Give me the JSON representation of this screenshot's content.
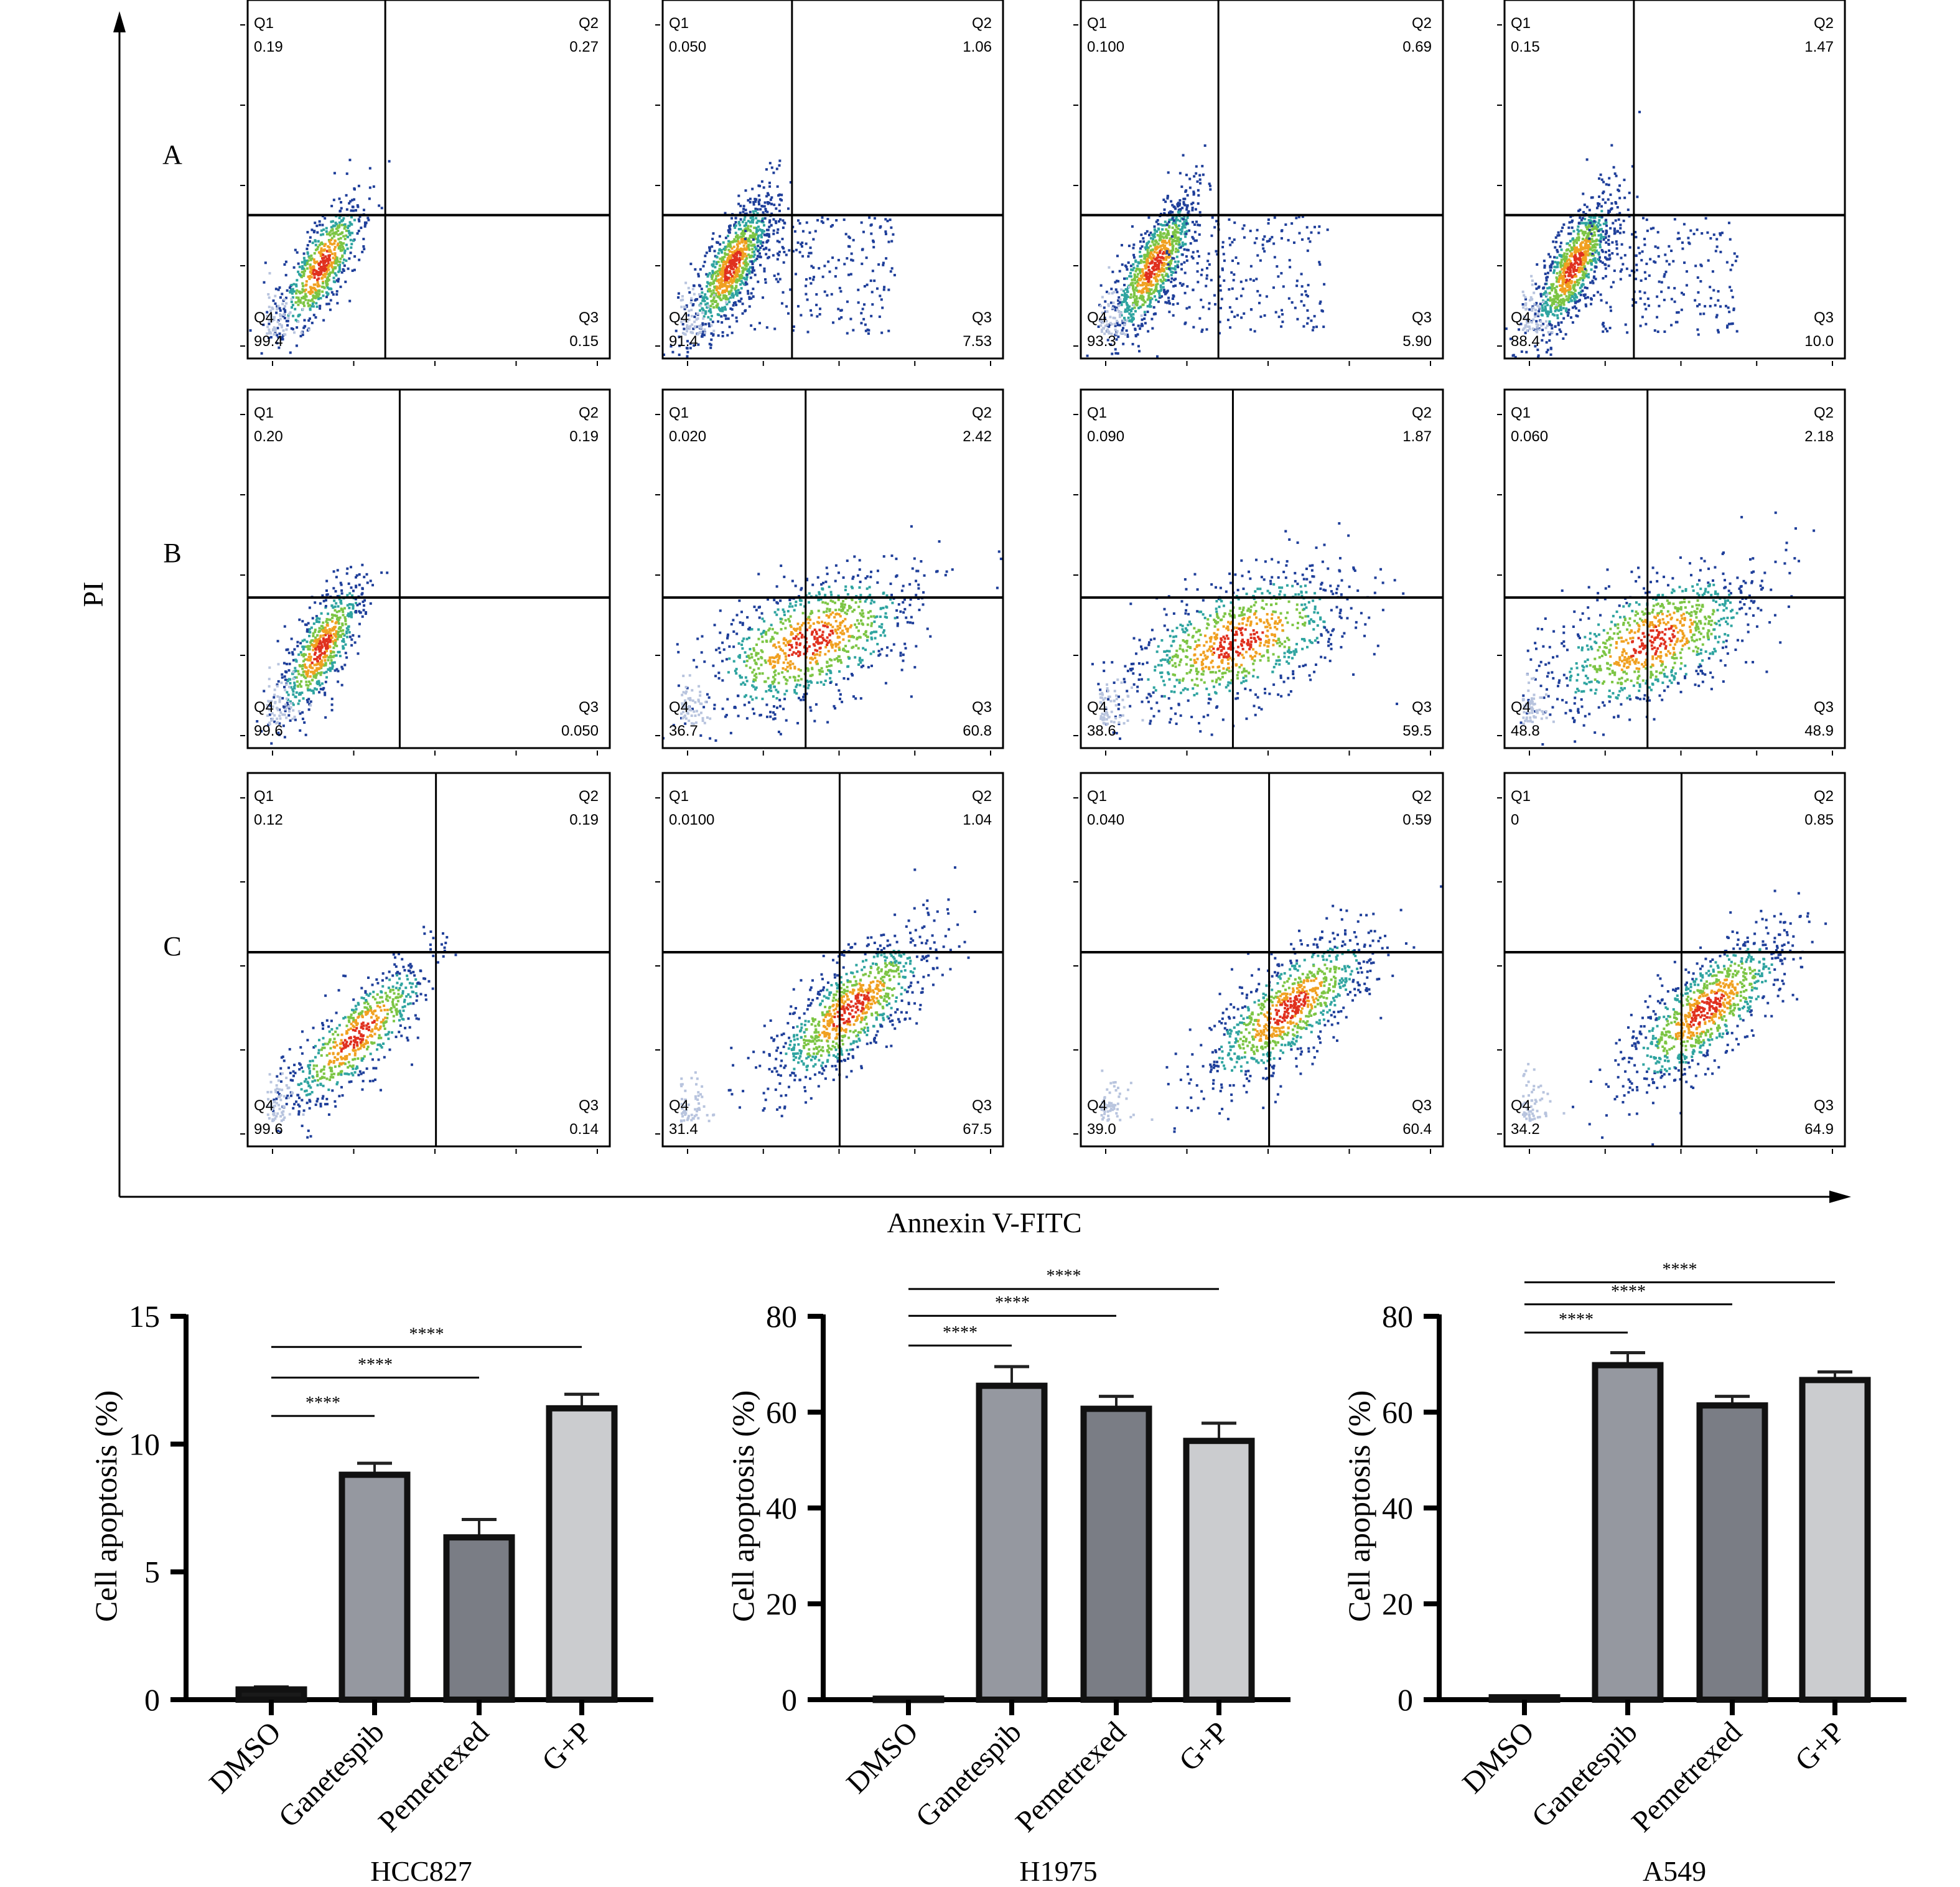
{
  "flow": {
    "y_axis_title": "PI",
    "x_axis_title": "Annexin V-FITC",
    "quadrant_names": [
      "Q1",
      "Q2",
      "Q3",
      "Q4"
    ],
    "rows": [
      {
        "label": "A",
        "plots": [
          {
            "Q1": "0.19",
            "Q2": "0.27",
            "Q3": "0.15",
            "Q4": "99.4"
          },
          {
            "Q1": "0.050",
            "Q2": "1.06",
            "Q3": "7.53",
            "Q4": "91.4"
          },
          {
            "Q1": "0.100",
            "Q2": "0.69",
            "Q3": "5.90",
            "Q4": "93.3"
          },
          {
            "Q1": "0.15",
            "Q2": "1.47",
            "Q3": "10.0",
            "Q4": "88.4"
          }
        ]
      },
      {
        "label": "B",
        "plots": [
          {
            "Q1": "0.20",
            "Q2": "0.19",
            "Q3": "0.050",
            "Q4": "99.6"
          },
          {
            "Q1": "0.020",
            "Q2": "2.42",
            "Q3": "60.8",
            "Q4": "36.7"
          },
          {
            "Q1": "0.090",
            "Q2": "1.87",
            "Q3": "59.5",
            "Q4": "38.6"
          },
          {
            "Q1": "0.060",
            "Q2": "2.18",
            "Q3": "48.9",
            "Q4": "48.8"
          }
        ]
      },
      {
        "label": "C",
        "plots": [
          {
            "Q1": "0.12",
            "Q2": "0.19",
            "Q3": "0.14",
            "Q4": "99.6"
          },
          {
            "Q1": "0.0100",
            "Q2": "1.04",
            "Q3": "67.5",
            "Q4": "31.4"
          },
          {
            "Q1": "0.040",
            "Q2": "0.59",
            "Q3": "60.4",
            "Q4": "39.0"
          },
          {
            "Q1": "0",
            "Q2": "0.85",
            "Q3": "64.9",
            "Q4": "34.2"
          }
        ]
      }
    ]
  },
  "chart_data": [
    {
      "type": "bar",
      "title": "HCC827",
      "ylabel": "Cell apoptosis (%)",
      "categories": [
        "DMSO",
        "Ganetespib",
        "Pemetrexed",
        "G+P"
      ],
      "values": [
        0.4,
        8.8,
        6.35,
        11.4
      ],
      "error": [
        0.1,
        0.45,
        0.7,
        0.55
      ],
      "ylim": [
        0,
        15
      ],
      "yticks": [
        "0",
        "5",
        "10",
        "15"
      ],
      "significance": [
        {
          "from": "DMSO",
          "to": "Ganetespib",
          "label": "****",
          "y": 11.1
        },
        {
          "from": "DMSO",
          "to": "Pemetrexed",
          "label": "****",
          "y": 12.6
        },
        {
          "from": "DMSO",
          "to": "G+P",
          "label": "****",
          "y": 13.8
        }
      ],
      "colors": [
        "#1a1a1a",
        "#9598a0",
        "#7a7d85",
        "#cbcccf"
      ]
    },
    {
      "type": "bar",
      "title": "H1975",
      "ylabel": "Cell apoptosis (%)",
      "categories": [
        "DMSO",
        "Ganetespib",
        "Pemetrexed",
        "G+P"
      ],
      "values": [
        0.2,
        65.5,
        60.7,
        54.0
      ],
      "error": [
        0.2,
        4.0,
        2.6,
        3.7
      ],
      "ylim": [
        0,
        80
      ],
      "yticks": [
        "0",
        "20",
        "40",
        "60",
        "80"
      ],
      "significance": [
        {
          "from": "DMSO",
          "to": "Ganetespib",
          "label": "****",
          "y": 73.9
        },
        {
          "from": "DMSO",
          "to": "Pemetrexed",
          "label": "****",
          "y": 80.1
        },
        {
          "from": "DMSO",
          "to": "G+P",
          "label": "****",
          "y": 85.7
        }
      ],
      "colors": [
        "#1a1a1a",
        "#9598a0",
        "#7a7d85",
        "#cbcccf"
      ]
    },
    {
      "type": "bar",
      "title": "A549",
      "ylabel": "Cell apoptosis (%)",
      "categories": [
        "DMSO",
        "Ganetespib",
        "Pemetrexed",
        "G+P"
      ],
      "values": [
        0.5,
        69.8,
        61.4,
        66.7
      ],
      "error": [
        0.1,
        2.6,
        1.9,
        1.7
      ],
      "ylim": [
        0,
        80
      ],
      "yticks": [
        "0",
        "20",
        "40",
        "60",
        "80"
      ],
      "significance": [
        {
          "from": "DMSO",
          "to": "Ganetespib",
          "label": "****",
          "y": 76.6
        },
        {
          "from": "DMSO",
          "to": "Pemetrexed",
          "label": "****",
          "y": 82.5
        },
        {
          "from": "DMSO",
          "to": "G+P",
          "label": "****",
          "y": 87.1
        }
      ],
      "colors": [
        "#1a1a1a",
        "#9598a0",
        "#7a7d85",
        "#cbcccf"
      ]
    }
  ]
}
